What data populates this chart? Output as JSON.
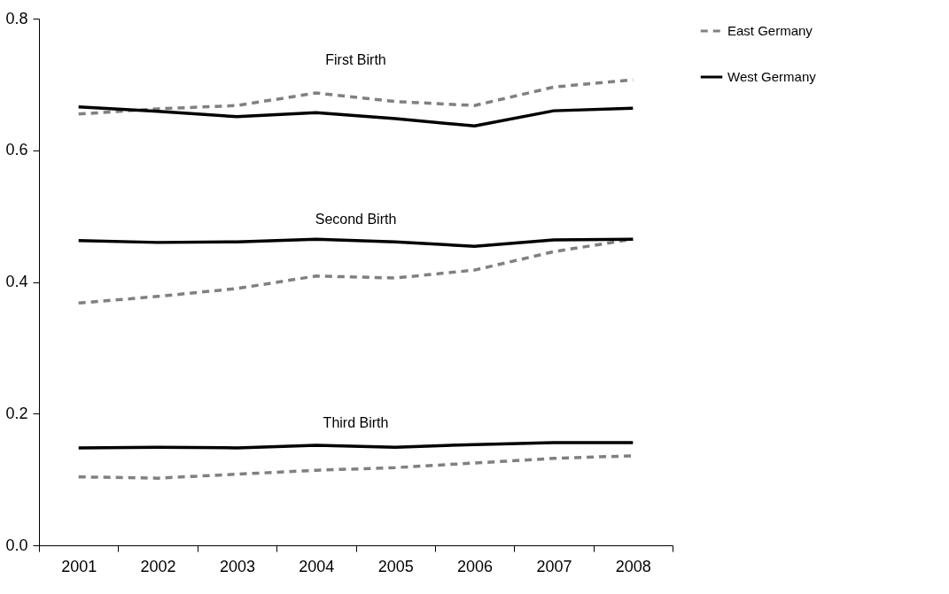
{
  "chart_data": {
    "type": "line",
    "categories": [
      "2001",
      "2002",
      "2003",
      "2004",
      "2005",
      "2006",
      "2007",
      "2008"
    ],
    "series": [
      {
        "name": "East Germany",
        "color": "#808080",
        "line_style": "dashed",
        "values": [
          0.655,
          0.663,
          0.668,
          0.687,
          0.674,
          0.668,
          0.696,
          0.707
        ]
      },
      {
        "name": "West Germany",
        "color": "#000000",
        "line_style": "solid",
        "values": [
          0.666,
          0.659,
          0.651,
          0.657,
          0.648,
          0.637,
          0.66,
          0.664
        ]
      },
      {
        "color": "#808080",
        "line_style": "dashed",
        "values": [
          0.368,
          0.378,
          0.39,
          0.409,
          0.406,
          0.418,
          0.446,
          0.465
        ]
      },
      {
        "color": "#000000",
        "line_style": "solid",
        "values": [
          0.463,
          0.46,
          0.461,
          0.465,
          0.461,
          0.454,
          0.464,
          0.465
        ]
      },
      {
        "color": "#808080",
        "line_style": "dashed",
        "values": [
          0.104,
          0.102,
          0.108,
          0.114,
          0.118,
          0.125,
          0.132,
          0.136
        ]
      },
      {
        "color": "#000000",
        "line_style": "solid",
        "values": [
          0.148,
          0.149,
          0.148,
          0.152,
          0.149,
          0.153,
          0.156,
          0.156
        ]
      }
    ],
    "ylim": [
      0,
      0.8
    ],
    "yticks": [
      {
        "value": 0,
        "label": "0.0"
      },
      {
        "value": 0.2,
        "label": "0.2"
      },
      {
        "value": 0.4,
        "label": "0.4"
      },
      {
        "value": 0.6,
        "label": "0.6"
      },
      {
        "value": 0.8,
        "label": "0.8"
      }
    ],
    "annotations": [
      "First Birth",
      "Second Birth",
      "Third Birth"
    ],
    "grid": false,
    "legend": "right",
    "marker": "none"
  }
}
